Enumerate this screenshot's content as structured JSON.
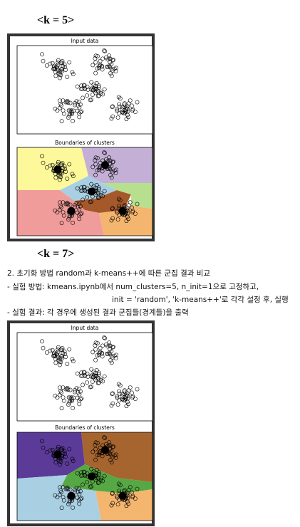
{
  "sections": [
    {
      "heading": "<k = 5>",
      "figure": {
        "top_title": "Input data",
        "bottom_title": "Boundaries of clusters"
      }
    },
    {
      "heading": "<k = 7>",
      "figure": {
        "top_title": "Input data",
        "bottom_title": "Boundaries of clusters"
      }
    }
  ],
  "paragraph": {
    "lines": [
      "2. 초기화 방법 random과 k-means++에 따른 군집 결과 비교",
      "- 실험 방법: kmeans.ipynb에서 num_clusters=5, n_init=1으로 고정하고,",
      "init = 'random', 'k-means++'로 각각 설정 후, 실행",
      "- 실험 결과: 각 경우에 생성된 결과 군집들(경계들)을 출력"
    ]
  }
}
